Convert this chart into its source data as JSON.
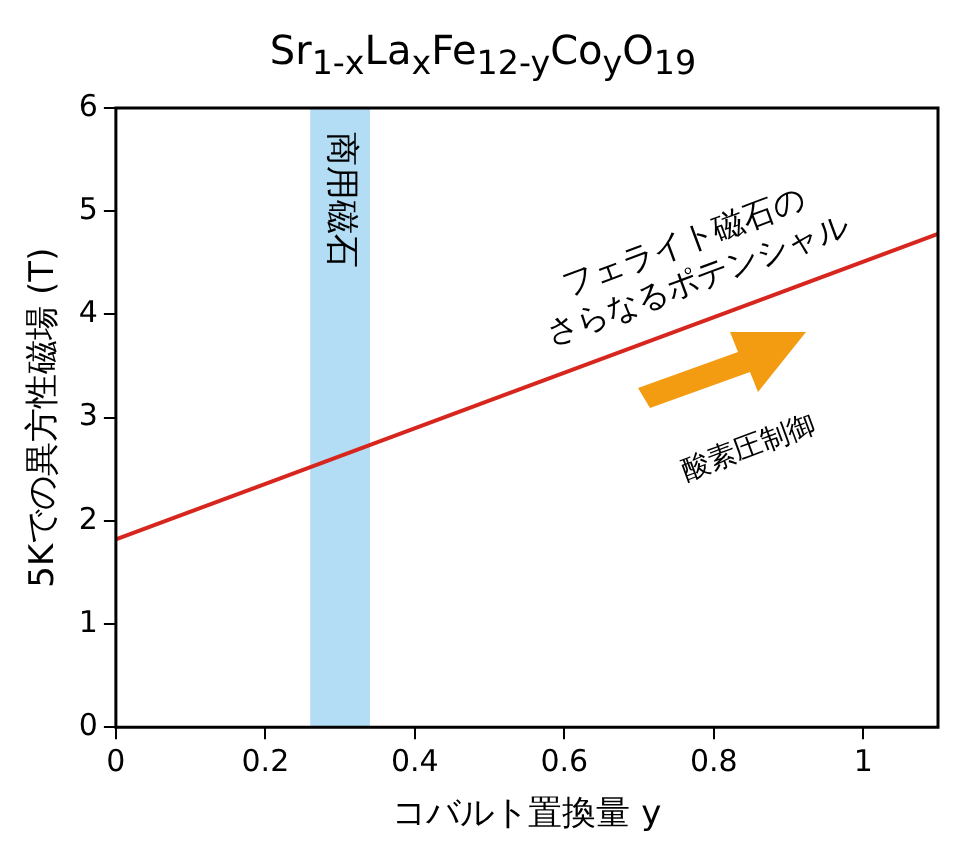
{
  "chart_data": {
    "type": "line",
    "title": "Sr$_{1-x}$La$_{x}$Fe$_{12-y}$Co$_{y}$O$_{19}$",
    "xlabel": "コバルト置換量 y",
    "ylabel": "5Kでの異方性磁場 (T)",
    "series": [
      {
        "x": [
          0,
          1.1
        ],
        "values": [
          1.82,
          4.78
        ],
        "color": "#d7261e"
      }
    ],
    "xlim": [
      0,
      1.1
    ],
    "xticks": [
      0,
      0.2,
      0.4,
      0.6,
      0.8,
      1
    ],
    "ylim": [
      0,
      6
    ],
    "yticks": [
      0,
      1,
      2,
      3,
      4,
      5,
      6
    ],
    "bands": [
      {
        "axis": "x",
        "from": 0.26,
        "to": 0.34,
        "label": "商用磁石",
        "color": "#b3dcf5"
      }
    ],
    "annotations": [
      "フェライト磁石の\nさらなるポテンシャル",
      "酸素圧制御"
    ],
    "grid": false,
    "legend": false,
    "marker": "none",
    "line_style": "solid"
  }
}
